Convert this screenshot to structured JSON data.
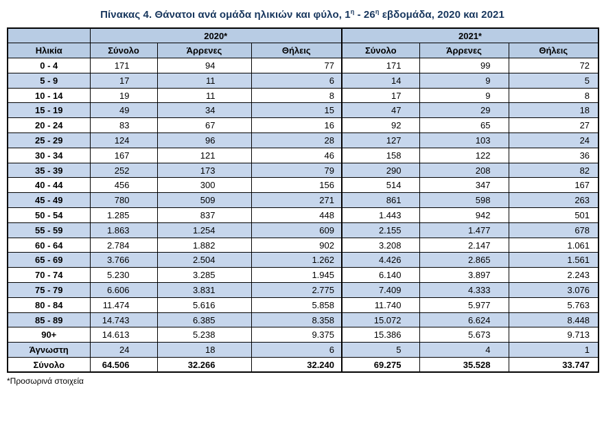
{
  "title": {
    "part1": "Πίνακας 4. Θάνατοι ανά ομάδα ηλικιών και φύλο, 1",
    "sup1": "η",
    "part2": " - 26",
    "sup2": "η",
    "part3": " εβδομάδα, 2020 και 2021"
  },
  "footnote": "*Προσωρινά στοιχεία",
  "colors": {
    "header_bg": "#B8CCE4",
    "band_bg": "#C6D6EC",
    "title_color": "#17365D",
    "border_color": "#000000"
  },
  "table": {
    "year_headers": [
      "2020*",
      "2021*"
    ],
    "column_headers": [
      "Ηλικία",
      "Σύνολο",
      "Άρρενες",
      "Θήλεις",
      "Σύνολο",
      "Άρρενες",
      "Θήλεις"
    ],
    "rows": [
      {
        "age": "0 - 4",
        "values": [
          "171",
          "94",
          "77",
          "171",
          "99",
          "72"
        ]
      },
      {
        "age": "5 - 9",
        "values": [
          "17",
          "11",
          "6",
          "14",
          "9",
          "5"
        ]
      },
      {
        "age": "10 - 14",
        "values": [
          "19",
          "11",
          "8",
          "17",
          "9",
          "8"
        ]
      },
      {
        "age": "15 - 19",
        "values": [
          "49",
          "34",
          "15",
          "47",
          "29",
          "18"
        ]
      },
      {
        "age": "20 - 24",
        "values": [
          "83",
          "67",
          "16",
          "92",
          "65",
          "27"
        ]
      },
      {
        "age": "25 - 29",
        "values": [
          "124",
          "96",
          "28",
          "127",
          "103",
          "24"
        ]
      },
      {
        "age": "30 - 34",
        "values": [
          "167",
          "121",
          "46",
          "158",
          "122",
          "36"
        ]
      },
      {
        "age": "35 - 39",
        "values": [
          "252",
          "173",
          "79",
          "290",
          "208",
          "82"
        ]
      },
      {
        "age": "40 - 44",
        "values": [
          "456",
          "300",
          "156",
          "514",
          "347",
          "167"
        ]
      },
      {
        "age": "45 - 49",
        "values": [
          "780",
          "509",
          "271",
          "861",
          "598",
          "263"
        ]
      },
      {
        "age": "50 - 54",
        "values": [
          "1.285",
          "837",
          "448",
          "1.443",
          "942",
          "501"
        ]
      },
      {
        "age": "55 - 59",
        "values": [
          "1.863",
          "1.254",
          "609",
          "2.155",
          "1.477",
          "678"
        ]
      },
      {
        "age": "60 - 64",
        "values": [
          "2.784",
          "1.882",
          "902",
          "3.208",
          "2.147",
          "1.061"
        ]
      },
      {
        "age": "65 - 69",
        "values": [
          "3.766",
          "2.504",
          "1.262",
          "4.426",
          "2.865",
          "1.561"
        ]
      },
      {
        "age": "70 - 74",
        "values": [
          "5.230",
          "3.285",
          "1.945",
          "6.140",
          "3.897",
          "2.243"
        ]
      },
      {
        "age": "75 - 79",
        "values": [
          "6.606",
          "3.831",
          "2.775",
          "7.409",
          "4.333",
          "3.076"
        ]
      },
      {
        "age": "80 - 84",
        "values": [
          "11.474",
          "5.616",
          "5.858",
          "11.740",
          "5.977",
          "5.763"
        ]
      },
      {
        "age": "85 - 89",
        "values": [
          "14.743",
          "6.385",
          "8.358",
          "15.072",
          "6.624",
          "8.448"
        ]
      },
      {
        "age": "90+",
        "values": [
          "14.613",
          "5.238",
          "9.375",
          "15.386",
          "5.673",
          "9.713"
        ]
      },
      {
        "age": "Άγνωστη",
        "values": [
          "24",
          "18",
          "6",
          "5",
          "4",
          "1"
        ]
      }
    ],
    "total_row": {
      "age": "Σύνολο",
      "values": [
        "64.506",
        "32.266",
        "32.240",
        "69.275",
        "35.528",
        "33.747"
      ]
    }
  }
}
